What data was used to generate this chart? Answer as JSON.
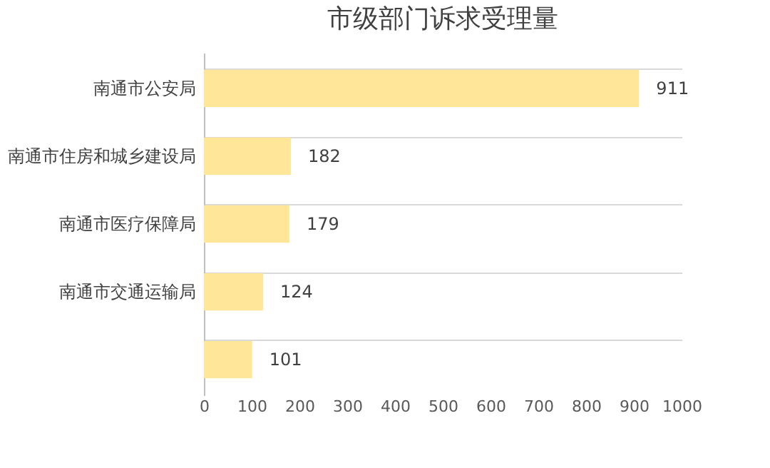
{
  "chart_data": {
    "type": "bar",
    "orientation": "horizontal",
    "title": "市级部门诉求受理量",
    "categories": [
      "南通市公安局",
      "南通市住房和城乡建设局",
      "南通市医疗保障局",
      "南通市交通运输局",
      null
    ],
    "values": [
      911,
      182,
      179,
      124,
      101
    ],
    "color": "#ffe699",
    "xlim": [
      0,
      1000
    ],
    "xticks": [
      0,
      100,
      200,
      300,
      400,
      500,
      600,
      700,
      800,
      900,
      1000
    ],
    "grid": "y",
    "data_labels": true
  }
}
